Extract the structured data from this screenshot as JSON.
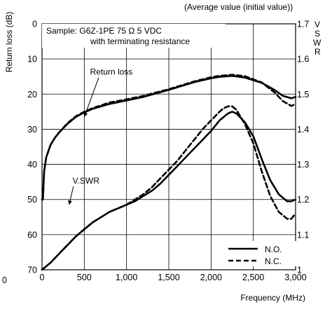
{
  "chart_data": {
    "type": "line",
    "header_note": "(Average value (initial value))",
    "sample_line1": "Sample:  G6Z-1PE  75 Ω  5 VDC",
    "sample_line2": "with terminating resistance",
    "xlabel": "Frequency (MHz)",
    "ylabel_left": "Return loss (dB)",
    "ylabel_right_letters": [
      "V",
      "S",
      "W",
      "R"
    ],
    "xlim": [
      0,
      3000
    ],
    "ylim_left": [
      0,
      70
    ],
    "ylim_left_inverted": true,
    "ylim_right": [
      1.0,
      1.7
    ],
    "x_ticks": [
      {
        "value": 0,
        "label": "0"
      },
      {
        "value": 500,
        "label": "500"
      },
      {
        "value": 1000,
        "label": "1,000"
      },
      {
        "value": 1500,
        "label": "1,500"
      },
      {
        "value": 2000,
        "label": "2,000"
      },
      {
        "value": 2500,
        "label": "2,500"
      },
      {
        "value": 3000,
        "label": "3,000"
      }
    ],
    "y_left_ticks": [
      {
        "value": 0,
        "label": "0"
      },
      {
        "value": 10,
        "label": "10"
      },
      {
        "value": 20,
        "label": "20"
      },
      {
        "value": 30,
        "label": "30"
      },
      {
        "value": 40,
        "label": "40"
      },
      {
        "value": 50,
        "label": "50"
      },
      {
        "value": 60,
        "label": "60"
      },
      {
        "value": 70,
        "label": "70"
      }
    ],
    "y_right_ticks": [
      {
        "value": 1.0,
        "label": "1"
      },
      {
        "value": 1.1,
        "label": "1.1"
      },
      {
        "value": 1.2,
        "label": "1.2"
      },
      {
        "value": 1.3,
        "label": "1.3"
      },
      {
        "value": 1.4,
        "label": "1.4"
      },
      {
        "value": 1.5,
        "label": "1.5"
      },
      {
        "value": 1.6,
        "label": "1.6"
      },
      {
        "value": 1.7,
        "label": "1.7"
      }
    ],
    "stray_left_label": "0",
    "grid": true,
    "legend_position": "bottom-right",
    "legend": [
      {
        "label": "N.O.",
        "style": "solid"
      },
      {
        "label": "N.C.",
        "style": "dashed"
      }
    ],
    "annotations": [
      {
        "text": "Return loss",
        "x": 820,
        "y": 14.5,
        "arrow_to": [
          500,
          26.5
        ]
      },
      {
        "text": "V.SWR",
        "x": 520,
        "y": 45.5,
        "arrow_to": [
          320,
          51.5
        ]
      }
    ],
    "series": [
      {
        "name": "N.O.",
        "measure": "Return loss",
        "axis": "left",
        "style": "solid",
        "x": [
          0,
          10,
          25,
          50,
          100,
          150,
          200,
          300,
          400,
          500,
          600,
          800,
          1000,
          1200,
          1500,
          1800,
          2000,
          2100,
          2250,
          2400,
          2600,
          2750,
          2850,
          2950,
          3000
        ],
        "y": [
          50,
          50,
          42,
          38,
          34.5,
          32.5,
          31,
          28.5,
          26.5,
          25.2,
          24.2,
          22.8,
          21.8,
          20.8,
          18.8,
          16.6,
          15.5,
          15.1,
          14.8,
          15.3,
          16.8,
          18.8,
          20.5,
          21.2,
          20.8
        ]
      },
      {
        "name": "N.C.",
        "measure": "Return loss",
        "axis": "left",
        "style": "dashed",
        "x": [
          0,
          10,
          25,
          50,
          100,
          150,
          200,
          300,
          400,
          500,
          600,
          800,
          1000,
          1200,
          1500,
          1800,
          2000,
          2100,
          2250,
          2400,
          2600,
          2750,
          2850,
          2950,
          3000
        ],
        "y": [
          50,
          50,
          42,
          38,
          34.5,
          32.5,
          31,
          28.3,
          26.3,
          25.0,
          24.0,
          22.4,
          21.5,
          20.5,
          18.6,
          16.4,
          15.2,
          14.8,
          14.5,
          14.9,
          16.7,
          19.5,
          22.0,
          23.4,
          22.8
        ]
      },
      {
        "name": "N.O.",
        "measure": "V.SWR",
        "axis": "right",
        "style": "solid",
        "x": [
          0,
          100,
          200,
          300,
          400,
          500,
          600,
          700,
          800,
          900,
          1000,
          1100,
          1200,
          1300,
          1400,
          1500,
          1600,
          1700,
          1800,
          1900,
          2000,
          2100,
          2200,
          2250,
          2300,
          2400,
          2500,
          2600,
          2700,
          2800,
          2900,
          2950,
          3000
        ],
        "y": [
          1.0,
          1.02,
          1.045,
          1.07,
          1.095,
          1.115,
          1.135,
          1.15,
          1.165,
          1.175,
          1.185,
          1.195,
          1.21,
          1.225,
          1.245,
          1.27,
          1.295,
          1.32,
          1.345,
          1.37,
          1.395,
          1.425,
          1.445,
          1.45,
          1.445,
          1.42,
          1.38,
          1.315,
          1.255,
          1.215,
          1.195,
          1.195,
          1.2
        ]
      },
      {
        "name": "N.C.",
        "measure": "V.SWR",
        "axis": "right",
        "style": "dashed",
        "x": [
          0,
          100,
          200,
          300,
          400,
          500,
          600,
          700,
          800,
          900,
          1000,
          1100,
          1200,
          1300,
          1400,
          1500,
          1600,
          1700,
          1800,
          1900,
          2000,
          2100,
          2150,
          2200,
          2250,
          2300,
          2400,
          2500,
          2600,
          2700,
          2800,
          2900,
          2950,
          3000
        ],
        "y": [
          1.0,
          1.02,
          1.045,
          1.07,
          1.095,
          1.115,
          1.135,
          1.15,
          1.165,
          1.175,
          1.185,
          1.2,
          1.215,
          1.235,
          1.26,
          1.285,
          1.31,
          1.34,
          1.37,
          1.4,
          1.425,
          1.45,
          1.46,
          1.465,
          1.465,
          1.455,
          1.415,
          1.36,
          1.28,
          1.21,
          1.165,
          1.145,
          1.145,
          1.16
        ]
      }
    ]
  }
}
